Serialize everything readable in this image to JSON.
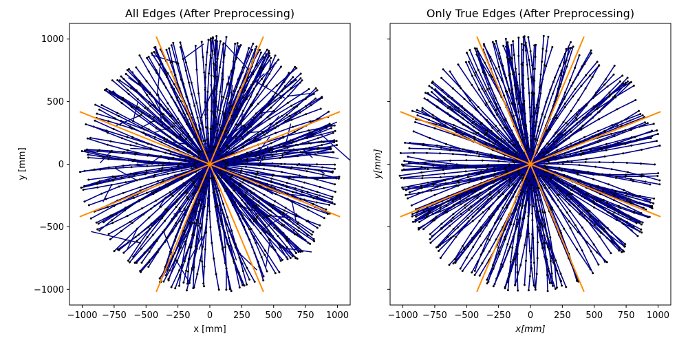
{
  "colors": {
    "edge": "#00008b",
    "node": "#000000",
    "sector_boundary": "#ff8c00",
    "axes_frame": "#000000"
  },
  "chart_data": [
    {
      "type": "scatter",
      "title": "All Edges (After Preprocessing)",
      "xlabel": "x [mm]",
      "ylabel": "y [mm]",
      "xlim": [
        -1100,
        1100
      ],
      "ylim": [
        -1125,
        1125
      ],
      "xticks": [
        -1000,
        -750,
        -500,
        -250,
        0,
        250,
        500,
        750,
        1000
      ],
      "xtick_labels": [
        "−1000",
        "−750",
        "−500",
        "−250",
        "0",
        "250",
        "500",
        "750",
        "1000"
      ],
      "yticks": [
        -1000,
        -500,
        0,
        500,
        1000
      ],
      "ytick_labels": [
        "−1000",
        "−500",
        "0",
        "500",
        "1000"
      ],
      "show_ytick_labels": true,
      "grid": false,
      "legend": "none",
      "sector_lines": [
        {
          "x": [
            -1020,
            1020
          ],
          "y": [
            420,
            -420
          ]
        },
        {
          "x": [
            -1020,
            1020
          ],
          "y": [
            -420,
            420
          ]
        },
        {
          "x": [
            -420,
            420
          ],
          "y": [
            1020,
            -1020
          ]
        },
        {
          "x": [
            -420,
            420
          ],
          "y": [
            -1020,
            1020
          ]
        }
      ],
      "edge_groups_estimated": [
        {
          "angle_deg": 0,
          "radius": [
            0,
            1010
          ]
        },
        {
          "angle_deg": 30,
          "radius": [
            0,
            1000
          ]
        },
        {
          "angle_deg": 60,
          "radius": [
            0,
            1010
          ]
        },
        {
          "angle_deg": 90,
          "radius": [
            0,
            1020
          ]
        },
        {
          "angle_deg": 120,
          "radius": [
            0,
            1010
          ]
        },
        {
          "angle_deg": 150,
          "radius": [
            0,
            1000
          ]
        },
        {
          "angle_deg": 180,
          "radius": [
            0,
            1020
          ]
        },
        {
          "angle_deg": 210,
          "radius": [
            0,
            1000
          ]
        },
        {
          "angle_deg": 240,
          "radius": [
            0,
            1010
          ]
        },
        {
          "angle_deg": 270,
          "radius": [
            0,
            1020
          ]
        },
        {
          "angle_deg": 300,
          "radius": [
            0,
            1010
          ]
        },
        {
          "angle_deg": 330,
          "radius": [
            0,
            1000
          ]
        }
      ]
    },
    {
      "type": "scatter",
      "title": "Only True Edges (After Preprocessing)",
      "xlabel": "x[mm]",
      "ylabel": "y[mm]",
      "xlim": [
        -1100,
        1100
      ],
      "ylim": [
        -1125,
        1125
      ],
      "xticks": [
        -1000,
        -750,
        -500,
        -250,
        0,
        250,
        500,
        750,
        1000
      ],
      "xtick_labels": [
        "−1000",
        "−750",
        "−500",
        "−250",
        "0",
        "250",
        "500",
        "750",
        "1000"
      ],
      "yticks": [
        -1000,
        -500,
        0,
        500,
        1000
      ],
      "ytick_labels": [],
      "show_ytick_labels": false,
      "grid": false,
      "legend": "none",
      "sector_lines": [
        {
          "x": [
            -1020,
            1020
          ],
          "y": [
            420,
            -420
          ]
        },
        {
          "x": [
            -1020,
            1020
          ],
          "y": [
            -420,
            420
          ]
        },
        {
          "x": [
            -420,
            420
          ],
          "y": [
            1020,
            -1020
          ]
        },
        {
          "x": [
            -420,
            420
          ],
          "y": [
            -1020,
            1020
          ]
        }
      ],
      "edge_groups_estimated": [
        {
          "angle_deg": 0,
          "radius": [
            0,
            1010
          ]
        },
        {
          "angle_deg": 30,
          "radius": [
            0,
            1000
          ]
        },
        {
          "angle_deg": 60,
          "radius": [
            0,
            1010
          ]
        },
        {
          "angle_deg": 90,
          "radius": [
            0,
            1020
          ]
        },
        {
          "angle_deg": 120,
          "radius": [
            0,
            1010
          ]
        },
        {
          "angle_deg": 150,
          "radius": [
            0,
            1000
          ]
        },
        {
          "angle_deg": 180,
          "radius": [
            0,
            1020
          ]
        },
        {
          "angle_deg": 210,
          "radius": [
            0,
            1000
          ]
        },
        {
          "angle_deg": 240,
          "radius": [
            0,
            1010
          ]
        },
        {
          "angle_deg": 270,
          "radius": [
            0,
            1020
          ]
        },
        {
          "angle_deg": 300,
          "radius": [
            0,
            1010
          ]
        },
        {
          "angle_deg": 330,
          "radius": [
            0,
            1000
          ]
        }
      ]
    }
  ]
}
